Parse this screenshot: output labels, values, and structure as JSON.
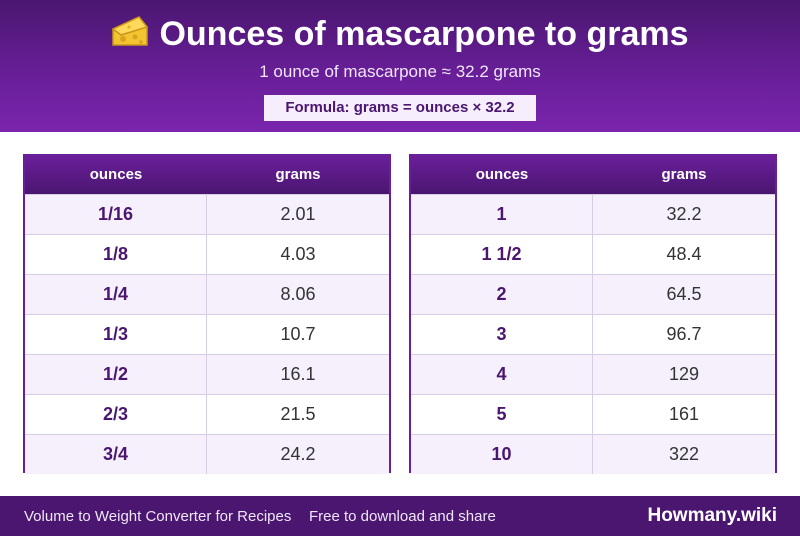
{
  "header": {
    "icon": "cheese-icon",
    "title": "Ounces of mascarpone to grams",
    "subtitle": "1 ounce of mascarpone ≈ 32.2 grams",
    "formula": "Formula: grams = ounces × 32.2"
  },
  "tables": [
    {
      "col_ounces": "ounces",
      "col_grams": "grams",
      "rows": [
        {
          "oz": "1/16",
          "g": "2.01"
        },
        {
          "oz": "1/8",
          "g": "4.03"
        },
        {
          "oz": "1/4",
          "g": "8.06"
        },
        {
          "oz": "1/3",
          "g": "10.7"
        },
        {
          "oz": "1/2",
          "g": "16.1"
        },
        {
          "oz": "2/3",
          "g": "21.5"
        },
        {
          "oz": "3/4",
          "g": "24.2"
        }
      ]
    },
    {
      "col_ounces": "ounces",
      "col_grams": "grams",
      "rows": [
        {
          "oz": "1",
          "g": "32.2"
        },
        {
          "oz": "1 1/2",
          "g": "48.4"
        },
        {
          "oz": "2",
          "g": "64.5"
        },
        {
          "oz": "3",
          "g": "96.7"
        },
        {
          "oz": "4",
          "g": "129"
        },
        {
          "oz": "5",
          "g": "161"
        },
        {
          "oz": "10",
          "g": "322"
        }
      ]
    }
  ],
  "footer": {
    "left": "Volume to Weight Converter for Recipes",
    "middle": "Free to download and share",
    "brand": "Howmany.wiki"
  },
  "colors": {
    "brand_purple": "#4a1670",
    "accent_purple": "#6a1f9a",
    "row_tint": "#f5f0fb"
  }
}
